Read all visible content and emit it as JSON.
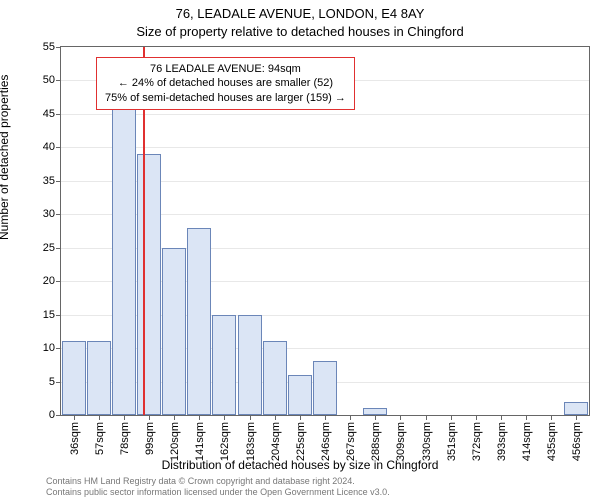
{
  "title_main": "76, LEADALE AVENUE, LONDON, E4 8AY",
  "title_sub": "Size of property relative to detached houses in Chingford",
  "ylabel": "Number of detached properties",
  "xlabel": "Distribution of detached houses by size in Chingford",
  "attribution_line1": "Contains HM Land Registry data © Crown copyright and database right 2024.",
  "attribution_line2": "Contains public sector information licensed under the Open Government Licence v3.0.",
  "chart": {
    "type": "bar",
    "ylim": [
      0,
      55
    ],
    "ytick_step": 5,
    "grid_color": "#e8e8e8",
    "background_color": "#ffffff",
    "bar_fill": "#dbe5f5",
    "bar_stroke": "#6b86b8",
    "refline_color": "#e03030",
    "refline_x_sqm": 94,
    "x_start": 36,
    "x_step": 21,
    "x_bins": 21,
    "bars": [
      11,
      11,
      49,
      39,
      25,
      28,
      15,
      15,
      11,
      6,
      8,
      0,
      1,
      0,
      0,
      0,
      0,
      0,
      0,
      0,
      2
    ],
    "annot_box": {
      "border": "#e03030",
      "lines": [
        "76 LEADALE AVENUE: 94sqm",
        "← 24% of detached houses are smaller (52)",
        "75% of semi-detached houses are larger (159) →"
      ]
    }
  }
}
